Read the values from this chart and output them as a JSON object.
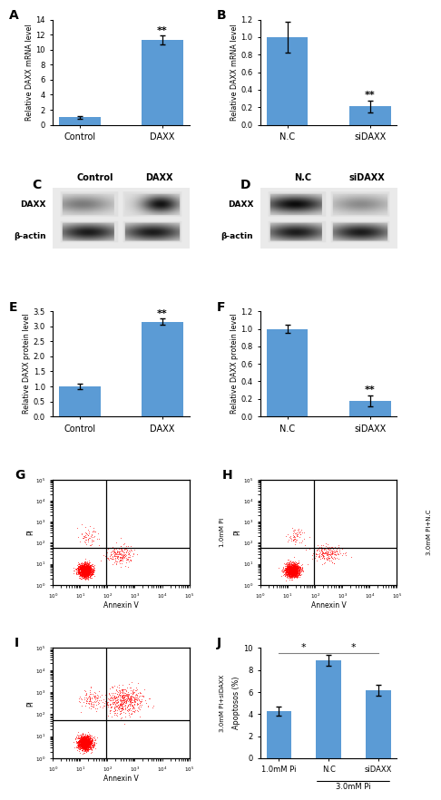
{
  "bar_color": "#5B9BD5",
  "panel_A": {
    "label": "A",
    "categories": [
      "Control",
      "DAXX"
    ],
    "values": [
      1.0,
      11.3
    ],
    "errors": [
      0.2,
      0.6
    ],
    "ylabel": "Relative DAXX mRNA level",
    "ylim": [
      0,
      14
    ],
    "yticks": [
      0,
      2,
      4,
      6,
      8,
      10,
      12,
      14
    ],
    "sig_idx": 1,
    "sig_val": 11.9,
    "sig_text": "**"
  },
  "panel_B": {
    "label": "B",
    "categories": [
      "N.C",
      "siDAXX"
    ],
    "values": [
      1.0,
      0.21
    ],
    "errors": [
      0.18,
      0.07
    ],
    "ylabel": "Relative DAXX mRNA level",
    "ylim": [
      0,
      1.2
    ],
    "yticks": [
      0.0,
      0.2,
      0.4,
      0.6,
      0.8,
      1.0,
      1.2
    ],
    "sig_idx": 1,
    "sig_val": 0.29,
    "sig_text": "**"
  },
  "panel_E": {
    "label": "E",
    "categories": [
      "Control",
      "DAXX"
    ],
    "values": [
      1.0,
      3.15
    ],
    "errors": [
      0.08,
      0.1
    ],
    "ylabel": "Relative DAXX protein level",
    "ylim": [
      0.0,
      3.5
    ],
    "yticks": [
      0.0,
      0.5,
      1.0,
      1.5,
      2.0,
      2.5,
      3.0,
      3.5
    ],
    "sig_idx": 1,
    "sig_val": 3.26,
    "sig_text": "**"
  },
  "panel_F": {
    "label": "F",
    "categories": [
      "N.C",
      "siDAXX"
    ],
    "values": [
      1.0,
      0.18
    ],
    "errors": [
      0.05,
      0.06
    ],
    "ylabel": "Relative DAXX protein level",
    "ylim": [
      0.0,
      1.2
    ],
    "yticks": [
      0.0,
      0.2,
      0.4,
      0.6,
      0.8,
      1.0,
      1.2
    ],
    "sig_idx": 1,
    "sig_val": 0.25,
    "sig_text": "**"
  },
  "panel_G": {
    "label": "G",
    "side_label": "1.0mM Pi"
  },
  "panel_H": {
    "label": "H",
    "side_label": "3.0mM PI+N.C"
  },
  "panel_I": {
    "label": "I",
    "side_label": "3.0mM PI+siDAXX"
  },
  "panel_J": {
    "label": "J",
    "categories": [
      "1.0mM Pi",
      "N.C",
      "siDAXX"
    ],
    "values": [
      4.3,
      8.9,
      6.2
    ],
    "errors": [
      0.4,
      0.5,
      0.5
    ],
    "ylabel": "Apoptosos (%)",
    "ylim": [
      0,
      10
    ],
    "yticks": [
      0,
      2,
      4,
      6,
      8,
      10
    ]
  }
}
